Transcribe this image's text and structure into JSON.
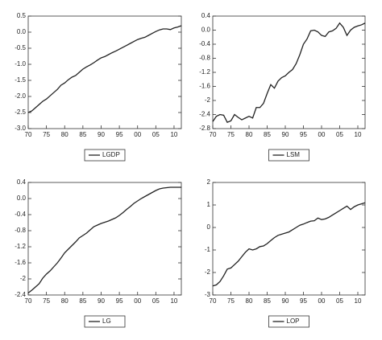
{
  "chart_data": [
    {
      "type": "line",
      "x": [
        1970,
        1971,
        1972,
        1973,
        1974,
        1975,
        1976,
        1977,
        1978,
        1979,
        1980,
        1981,
        1982,
        1983,
        1984,
        1985,
        1986,
        1987,
        1988,
        1989,
        1990,
        1991,
        1992,
        1993,
        1994,
        1995,
        1996,
        1997,
        1998,
        1999,
        2000,
        2001,
        2002,
        2003,
        2004,
        2005,
        2006,
        2007,
        2008,
        2009,
        2010,
        2011,
        2012
      ],
      "series": [
        {
          "name": "LGDP",
          "color": "#222222",
          "values": [
            -2.5,
            -2.45,
            -2.35,
            -2.25,
            -2.15,
            -2.08,
            -1.98,
            -1.88,
            -1.78,
            -1.65,
            -1.58,
            -1.48,
            -1.4,
            -1.35,
            -1.25,
            -1.15,
            -1.08,
            -1.02,
            -0.95,
            -0.87,
            -0.8,
            -0.76,
            -0.7,
            -0.64,
            -0.59,
            -0.53,
            -0.47,
            -0.41,
            -0.35,
            -0.29,
            -0.23,
            -0.19,
            -0.16,
            -0.1,
            -0.04,
            0.02,
            0.07,
            0.1,
            0.1,
            0.08,
            0.13,
            0.16,
            0.2
          ]
        }
      ],
      "xlim": [
        1970,
        2012
      ],
      "xticks": [
        {
          "value": 1970,
          "label": "70"
        },
        {
          "value": 1975,
          "label": "75"
        },
        {
          "value": 1980,
          "label": "80"
        },
        {
          "value": 1985,
          "label": "85"
        },
        {
          "value": 1990,
          "label": "90"
        },
        {
          "value": 1995,
          "label": "95"
        },
        {
          "value": 2000,
          "label": "00"
        },
        {
          "value": 2005,
          "label": "05"
        },
        {
          "value": 2010,
          "label": "10"
        }
      ],
      "ylim": [
        -3.0,
        0.5
      ],
      "yticks": [
        {
          "value": -3,
          "label": "-3.0"
        },
        -2.5,
        {
          "value": -2,
          "label": "-2.0"
        },
        -1.5,
        {
          "value": -1,
          "label": "-1.0"
        },
        -0.5,
        {
          "value": 0,
          "label": "0.0"
        },
        0.5
      ]
    },
    {
      "type": "line",
      "x": [
        1970,
        1971,
        1972,
        1973,
        1974,
        1975,
        1976,
        1977,
        1978,
        1979,
        1980,
        1981,
        1982,
        1983,
        1984,
        1985,
        1986,
        1987,
        1988,
        1989,
        1990,
        1991,
        1992,
        1993,
        1994,
        1995,
        1996,
        1997,
        1998,
        1999,
        2000,
        2001,
        2002,
        2003,
        2004,
        2005,
        2006,
        2007,
        2008,
        2009,
        2010,
        2011,
        2012
      ],
      "series": [
        {
          "name": "LSM",
          "color": "#222222",
          "values": [
            -2.6,
            -2.45,
            -2.4,
            -2.42,
            -2.62,
            -2.58,
            -2.4,
            -2.48,
            -2.55,
            -2.5,
            -2.45,
            -2.5,
            -2.2,
            -2.2,
            -2.08,
            -1.8,
            -1.55,
            -1.65,
            -1.45,
            -1.35,
            -1.3,
            -1.2,
            -1.12,
            -0.95,
            -0.7,
            -0.4,
            -0.25,
            -0.02,
            0.0,
            -0.05,
            -0.15,
            -0.18,
            -0.05,
            -0.02,
            0.05,
            0.2,
            0.08,
            -0.15,
            0.0,
            0.08,
            0.12,
            0.15,
            0.2
          ]
        }
      ],
      "xlim": [
        1970,
        2012
      ],
      "xticks": [
        {
          "value": 1970,
          "label": "70"
        },
        {
          "value": 1975,
          "label": "75"
        },
        {
          "value": 1980,
          "label": "80"
        },
        {
          "value": 1985,
          "label": "85"
        },
        {
          "value": 1990,
          "label": "90"
        },
        {
          "value": 1995,
          "label": "95"
        },
        {
          "value": 2000,
          "label": "00"
        },
        {
          "value": 2005,
          "label": "05"
        },
        {
          "value": 2010,
          "label": "10"
        }
      ],
      "ylim": [
        -2.8,
        0.4
      ],
      "yticks": [
        -2.8,
        -2.4,
        -2.0,
        -1.6,
        -1.2,
        -0.8,
        -0.4,
        {
          "value": 0,
          "label": "0.0"
        },
        0.4
      ]
    },
    {
      "type": "line",
      "x": [
        1970,
        1971,
        1972,
        1973,
        1974,
        1975,
        1976,
        1977,
        1978,
        1979,
        1980,
        1981,
        1982,
        1983,
        1984,
        1985,
        1986,
        1987,
        1988,
        1989,
        1990,
        1991,
        1992,
        1993,
        1994,
        1995,
        1996,
        1997,
        1998,
        1999,
        2000,
        2001,
        2002,
        2003,
        2004,
        2005,
        2006,
        2007,
        2008,
        2009,
        2010,
        2011,
        2012
      ],
      "series": [
        {
          "name": "LG",
          "color": "#222222",
          "values": [
            -2.35,
            -2.28,
            -2.2,
            -2.12,
            -1.98,
            -1.88,
            -1.8,
            -1.7,
            -1.6,
            -1.48,
            -1.35,
            -1.26,
            -1.17,
            -1.08,
            -0.98,
            -0.92,
            -0.86,
            -0.78,
            -0.7,
            -0.66,
            -0.62,
            -0.59,
            -0.56,
            -0.52,
            -0.48,
            -0.42,
            -0.35,
            -0.27,
            -0.2,
            -0.12,
            -0.06,
            0.0,
            0.05,
            0.1,
            0.15,
            0.2,
            0.24,
            0.26,
            0.27,
            0.28,
            0.28,
            0.28,
            0.28
          ]
        }
      ],
      "xlim": [
        1970,
        2012
      ],
      "xticks": [
        {
          "value": 1970,
          "label": "70"
        },
        {
          "value": 1975,
          "label": "75"
        },
        {
          "value": 1980,
          "label": "80"
        },
        {
          "value": 1985,
          "label": "85"
        },
        {
          "value": 1990,
          "label": "90"
        },
        {
          "value": 1995,
          "label": "95"
        },
        {
          "value": 2000,
          "label": "00"
        },
        {
          "value": 2005,
          "label": "05"
        },
        {
          "value": 2010,
          "label": "10"
        }
      ],
      "ylim": [
        -2.4,
        0.4
      ],
      "yticks": [
        -2.4,
        -2.0,
        -1.6,
        -1.2,
        -0.8,
        -0.4,
        {
          "value": 0,
          "label": "0.0"
        },
        0.4
      ]
    },
    {
      "type": "line",
      "x": [
        1970,
        1971,
        1972,
        1973,
        1974,
        1975,
        1976,
        1977,
        1978,
        1979,
        1980,
        1981,
        1982,
        1983,
        1984,
        1985,
        1986,
        1987,
        1988,
        1989,
        1990,
        1991,
        1992,
        1993,
        1994,
        1995,
        1996,
        1997,
        1998,
        1999,
        2000,
        2001,
        2002,
        2003,
        2004,
        2005,
        2006,
        2007,
        2008,
        2009,
        2010,
        2011,
        2012
      ],
      "series": [
        {
          "name": "LOP",
          "color": "#222222",
          "values": [
            -2.6,
            -2.55,
            -2.4,
            -2.15,
            -1.85,
            -1.8,
            -1.65,
            -1.5,
            -1.3,
            -1.1,
            -0.95,
            -1.0,
            -0.95,
            -0.85,
            -0.82,
            -0.72,
            -0.58,
            -0.45,
            -0.35,
            -0.3,
            -0.25,
            -0.2,
            -0.1,
            0.0,
            0.1,
            0.15,
            0.22,
            0.28,
            0.3,
            0.42,
            0.35,
            0.38,
            0.45,
            0.55,
            0.65,
            0.75,
            0.85,
            0.95,
            0.8,
            0.92,
            1.0,
            1.05,
            1.1
          ]
        }
      ],
      "xlim": [
        1970,
        2012
      ],
      "xticks": [
        {
          "value": 1970,
          "label": "70"
        },
        {
          "value": 1975,
          "label": "75"
        },
        {
          "value": 1980,
          "label": "80"
        },
        {
          "value": 1985,
          "label": "85"
        },
        {
          "value": 1990,
          "label": "90"
        },
        {
          "value": 1995,
          "label": "95"
        },
        {
          "value": 2000,
          "label": "00"
        },
        {
          "value": 2005,
          "label": "05"
        },
        {
          "value": 2010,
          "label": "10"
        }
      ],
      "ylim": [
        -3,
        2
      ],
      "yticks": [
        -3,
        -2,
        -1,
        0,
        1,
        2
      ]
    }
  ]
}
